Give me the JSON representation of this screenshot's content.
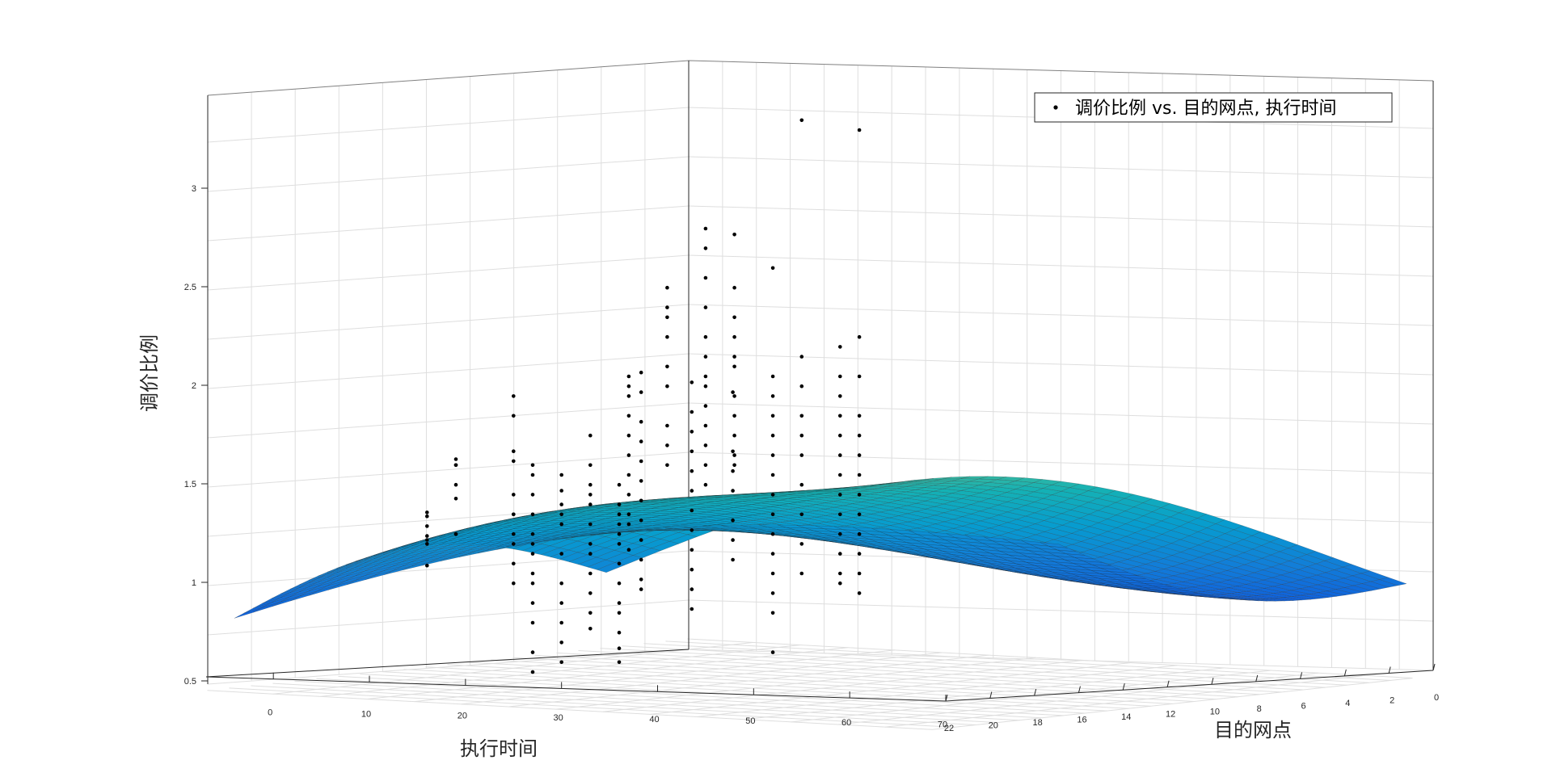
{
  "chart_data": {
    "type": "surface+scatter",
    "title": "",
    "xlabel": "执行时间",
    "ylabel": "目的网点",
    "zlabel": "调价比例",
    "x_ticks": [
      "0",
      "10",
      "20",
      "30",
      "40",
      "50",
      "60",
      "70"
    ],
    "y_ticks": [
      "0",
      "2",
      "4",
      "6",
      "8",
      "10",
      "12",
      "14",
      "16",
      "18",
      "20",
      "22"
    ],
    "z_ticks": [
      "0.5",
      "1",
      "1.5",
      "2",
      "2.5",
      "3"
    ],
    "xlim": [
      -7,
      70
    ],
    "ylim": [
      0,
      22
    ],
    "zlim": [
      0.45,
      3.35
    ],
    "legend": {
      "label": "调价比例 vs. 目的网点, 执行时间",
      "placement": "top-right"
    },
    "grid": true,
    "colormap": "parula",
    "colors": {
      "grid": "#dedede",
      "axis": "#262626",
      "points": "#000000"
    },
    "scatter_groups": [
      {
        "x": 16,
        "y": 22,
        "z": [
          1.31,
          1.24,
          1.19,
          1.17,
          1.04,
          1.15,
          1.29
        ]
      },
      {
        "x": 19,
        "y": 22,
        "z": [
          1.55,
          1.45,
          1.58,
          1.38,
          1.55,
          1.2,
          1.2
        ]
      },
      {
        "x": 25,
        "y": 22,
        "z": [
          1.8,
          1.9,
          1.62,
          1.57,
          1.4,
          1.3,
          1.2,
          1.15,
          1.05,
          0.95,
          1.3
        ]
      },
      {
        "x": 27,
        "y": 22,
        "z": [
          1.55,
          1.5,
          1.4,
          1.2,
          1.1,
          0.95,
          0.85,
          0.75,
          0.6,
          0.5,
          1.3,
          1.15,
          1.0
        ]
      },
      {
        "x": 30,
        "y": 22,
        "z": [
          1.5,
          1.42,
          1.3,
          1.1,
          0.95,
          0.85,
          0.75,
          0.65,
          0.55,
          1.25,
          1.35
        ]
      },
      {
        "x": 33,
        "y": 22,
        "z": [
          1.7,
          1.55,
          1.4,
          1.25,
          1.1,
          1.0,
          0.9,
          0.8,
          0.72,
          1.15,
          1.35,
          1.45
        ]
      },
      {
        "x": 36,
        "y": 22,
        "z": [
          1.45,
          1.35,
          1.25,
          1.15,
          1.05,
          0.95,
          0.85,
          0.8,
          0.7,
          0.62,
          0.55,
          1.2,
          1.3
        ]
      },
      {
        "x": 37,
        "y": 20,
        "z": [
          2.0,
          1.9,
          1.8,
          1.7,
          1.95,
          1.6,
          1.5,
          1.4,
          1.3,
          1.25,
          1.12
        ]
      },
      {
        "x": 41,
        "y": 19,
        "z": [
          2.2,
          2.35,
          2.45,
          2.3,
          2.05,
          1.95,
          1.75,
          1.65,
          1.55
        ]
      },
      {
        "x": 45,
        "y": 18,
        "z": [
          2.75,
          2.65,
          2.5,
          2.35,
          2.2,
          2.1,
          2.0,
          1.95,
          1.85,
          1.75,
          1.65,
          1.55,
          1.45
        ]
      },
      {
        "x": 48,
        "y": 17,
        "z": [
          2.72,
          2.45,
          2.3,
          2.2,
          2.1,
          2.05,
          1.9,
          1.8,
          1.7,
          1.6,
          1.55
        ]
      },
      {
        "x": 52,
        "y": 17,
        "z": [
          2.0,
          1.9,
          1.8,
          1.7,
          1.6,
          1.5,
          1.4,
          1.3,
          1.2,
          1.1,
          1.0,
          0.9,
          0.8,
          0.6,
          2.55
        ]
      },
      {
        "x": 55,
        "y": 16,
        "z": [
          3.3,
          2.1,
          1.95,
          1.8,
          1.7,
          1.6,
          1.45,
          1.3,
          1.15,
          1.0
        ]
      },
      {
        "x": 59,
        "y": 15,
        "z": [
          2.15,
          2.0,
          1.9,
          1.8,
          1.7,
          1.6,
          1.5,
          1.4,
          1.3,
          1.2,
          1.1,
          1.0,
          0.95
        ]
      },
      {
        "x": 61,
        "y": 15,
        "z": [
          3.25,
          2.2,
          2.0,
          1.8,
          1.7,
          1.6,
          1.5,
          1.4,
          1.3,
          1.2,
          1.1,
          1.0,
          0.9
        ]
      },
      {
        "x": 60,
        "y": 6,
        "z": [
          1.95,
          1.85,
          1.7,
          1.6,
          1.5,
          1.4,
          1.3,
          1.2,
          1.1,
          1.0,
          0.9,
          0.85
        ]
      },
      {
        "x": 63,
        "y": 5,
        "z": [
          1.9,
          1.75,
          1.65,
          1.55,
          1.45,
          1.35,
          1.25,
          1.15,
          1.05,
          0.95,
          0.85,
          0.75
        ]
      },
      {
        "x": 65,
        "y": 4,
        "z": [
          1.85,
          1.55,
          1.45,
          1.35,
          1.2,
          1.1,
          1.0
        ]
      }
    ]
  }
}
